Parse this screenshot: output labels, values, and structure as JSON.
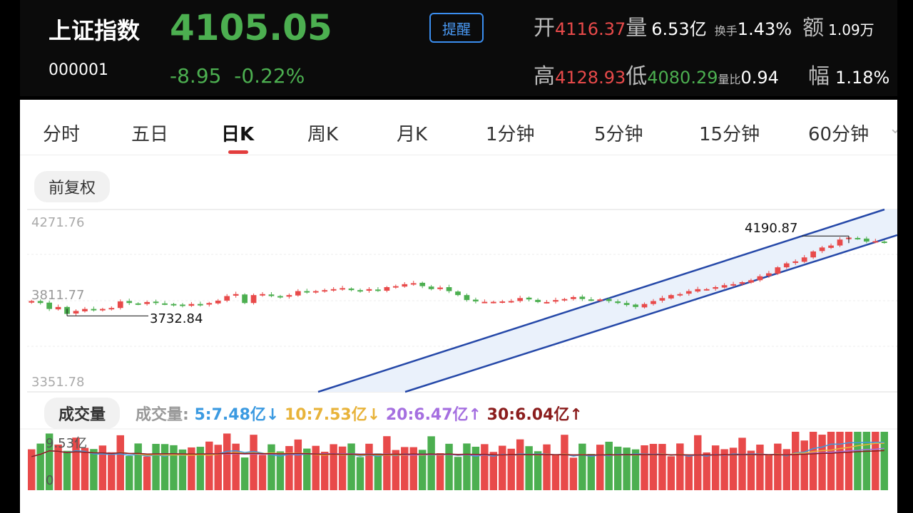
{
  "header": {
    "name": "上证指数",
    "code": "000001",
    "price": "4105.05",
    "change": "-8.95",
    "change_pct": "-0.22%",
    "remind_label": "提醒",
    "stats": {
      "open_label": "开",
      "open": "4116.37",
      "volume_label": "量",
      "volume": "6.53亿",
      "turnover_label": "换手",
      "turnover": "1.43%",
      "amount_label": "额",
      "amount": "1.09万",
      "high_label": "高",
      "high": "4128.93",
      "low_label": "低",
      "low": "4080.29",
      "vol_ratio_label": "量比",
      "vol_ratio": "0.94",
      "amp_label": "幅",
      "amp": "1.18%"
    }
  },
  "tabs": [
    "分时",
    "五日",
    "日K",
    "周K",
    "月K",
    "1分钟",
    "5分钟",
    "15分钟",
    "60分钟"
  ],
  "active_tab": "日K",
  "adjust_label": "前复权",
  "colors": {
    "up": "#e84a4a",
    "down": "#4caf50",
    "channel": "#2548a8",
    "channel_fill": "#eaf1fb"
  },
  "chart_data": {
    "type": "candlestick",
    "y_axis_labels": [
      "4271.76",
      "3811.77",
      "3351.78"
    ],
    "y_range": [
      3351.78,
      4271.76
    ],
    "max_annotation": "4190.87",
    "min_annotation": "3732.84",
    "closes": [
      3810,
      3800,
      3770,
      3780,
      3745,
      3760,
      3770,
      3765,
      3770,
      3775,
      3808,
      3800,
      3795,
      3805,
      3800,
      3795,
      3790,
      3788,
      3795,
      3790,
      3800,
      3812,
      3835,
      3845,
      3800,
      3840,
      3845,
      3835,
      3830,
      3840,
      3860,
      3855,
      3860,
      3865,
      3870,
      3875,
      3865,
      3860,
      3870,
      3862,
      3880,
      3885,
      3895,
      3900,
      3885,
      3870,
      3878,
      3860,
      3840,
      3815,
      3808,
      3806,
      3806,
      3808,
      3810,
      3825,
      3818,
      3805,
      3805,
      3815,
      3820,
      3830,
      3820,
      3815,
      3818,
      3810,
      3800,
      3790,
      3780,
      3795,
      3810,
      3825,
      3840,
      3845,
      3860,
      3870,
      3870,
      3880,
      3890,
      3895,
      3905,
      3915,
      3935,
      3950,
      3980,
      4000,
      4010,
      4030,
      4060,
      4080,
      4090,
      4120,
      4130,
      4125,
      4110,
      4112,
      4105
    ],
    "volume": {
      "label": "成交量",
      "legend_prefix": "成交量:",
      "max_label": "9.53亿",
      "zero_label": "0",
      "ma": [
        {
          "name": "5",
          "value": "7.48亿",
          "trend": "↓",
          "color": "#3b9ae1"
        },
        {
          "name": "10",
          "value": "7.53亿",
          "trend": "↓",
          "color": "#e8b33a"
        },
        {
          "name": "20",
          "value": "6.47亿",
          "trend": "↑",
          "color": "#a56fe0"
        },
        {
          "name": "30",
          "value": "6.04亿",
          "trend": "↑",
          "color": "#8b1d1d"
        }
      ]
    }
  }
}
